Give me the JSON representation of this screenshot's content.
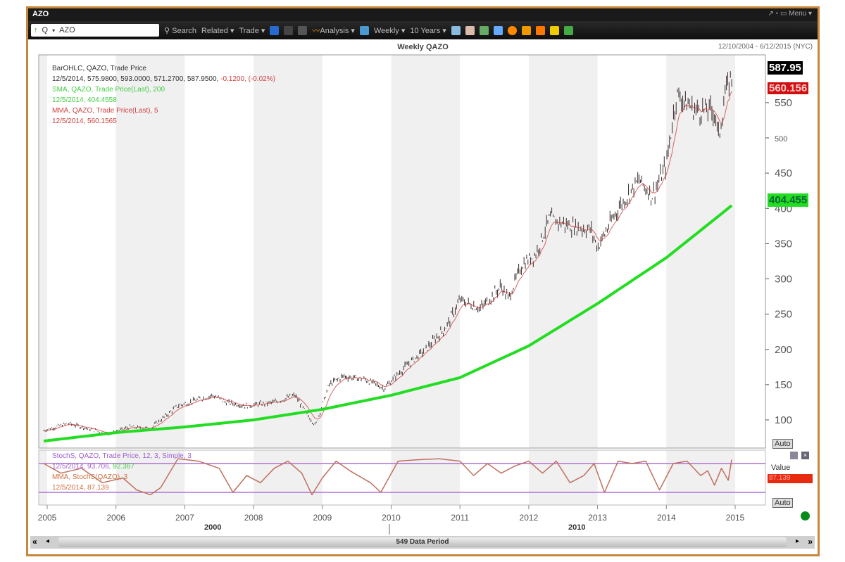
{
  "window": {
    "title": "AZO",
    "controls": "↗ ▫ ▭ Menu ▾"
  },
  "toolbar": {
    "q": "Q",
    "symbol": "AZO",
    "search": "Search",
    "related": "Related ▾",
    "trade": "Trade ▾",
    "analysis": "Analysis ▾",
    "weekly": "Weekly ▾",
    "years": "10 Years ▾"
  },
  "chart_title": "Weekly QAZO",
  "date_range": "12/10/2004 - 6/12/2015 (NYC)",
  "legend": {
    "bar_title": "BarOHLC, QAZO, Trade Price",
    "bar_values": "12/5/2014, 575.9800, 593.0000, 571.2700, 587.9500,",
    "bar_change": "-0.1200, (-0.02%)",
    "sma_title": "SMA, QAZO, Trade Price(Last), 200",
    "sma_value": "12/5/2014, 404.4558",
    "mma_title": "MMA, QAZO, Trade Price(Last), 5",
    "mma_value": "12/5/2014, 560.1565",
    "stoch_title": "StochS, QAZO, Trade Price, 12, 3, Simple, 3",
    "stoch_values": "12/5/2014, 93.706,",
    "stoch_values2": "92.367",
    "smma_title": "MMA, StochS(QAZO), 3",
    "smma_value": "12/5/2014, 87.139"
  },
  "tags": {
    "last": "587.95",
    "mma": "560.156",
    "sma": "404.455",
    "value_label": "Value",
    "stoch": "87.139"
  },
  "buttons": {
    "auto": "Auto",
    "auto2": "Auto",
    "first": "«",
    "prev": "◂",
    "next": "▸",
    "last": "»"
  },
  "scroll_label": "549 Data Period",
  "decades": [
    "2000",
    "2010"
  ],
  "colors": {
    "price": "#3a2a2a",
    "sma": "#22dd22",
    "mma": "#d04040",
    "stoch": "#c07060",
    "band": "#b070d0"
  },
  "chart_data": {
    "type": "line",
    "title": "Weekly QAZO",
    "xlabel": "",
    "ylabel": "",
    "xlim": [
      2004.9,
      2015.4
    ],
    "ylim": [
      80,
      600
    ],
    "x_ticks": [
      "2005",
      "2006",
      "2007",
      "2008",
      "2009",
      "2010",
      "2011",
      "2012",
      "2013",
      "2014",
      "2015"
    ],
    "y_ticks": [
      "100",
      "150",
      "200",
      "250",
      "300",
      "350",
      "400",
      "450",
      "500",
      "550"
    ],
    "series": [
      {
        "name": "BarOHLC QAZO",
        "points": [
          [
            2004.95,
            85
          ],
          [
            2005.3,
            95
          ],
          [
            2005.5,
            90
          ],
          [
            2005.9,
            80
          ],
          [
            2006.2,
            90
          ],
          [
            2006.5,
            88
          ],
          [
            2006.9,
            120
          ],
          [
            2007.4,
            135
          ],
          [
            2007.6,
            125
          ],
          [
            2007.9,
            120
          ],
          [
            2008.3,
            125
          ],
          [
            2008.6,
            135
          ],
          [
            2008.8,
            105
          ],
          [
            2008.9,
            92
          ],
          [
            2009.1,
            150
          ],
          [
            2009.3,
            162
          ],
          [
            2009.6,
            158
          ],
          [
            2009.9,
            145
          ],
          [
            2010.2,
            175
          ],
          [
            2010.5,
            200
          ],
          [
            2010.8,
            232
          ],
          [
            2011.0,
            270
          ],
          [
            2011.3,
            258
          ],
          [
            2011.6,
            290
          ],
          [
            2011.7,
            272
          ],
          [
            2011.9,
            320
          ],
          [
            2012.1,
            335
          ],
          [
            2012.3,
            385
          ],
          [
            2012.6,
            375
          ],
          [
            2012.9,
            370
          ],
          [
            2013.0,
            345
          ],
          [
            2013.3,
            400
          ],
          [
            2013.6,
            440
          ],
          [
            2013.8,
            418
          ],
          [
            2014.0,
            462
          ],
          [
            2014.1,
            530
          ],
          [
            2014.15,
            562
          ],
          [
            2014.4,
            540
          ],
          [
            2014.7,
            538
          ],
          [
            2014.76,
            500
          ],
          [
            2014.85,
            560
          ],
          [
            2014.95,
            588
          ]
        ]
      },
      {
        "name": "SMA 200",
        "points": [
          [
            2004.95,
            70
          ],
          [
            2006,
            82
          ],
          [
            2007,
            90
          ],
          [
            2008,
            100
          ],
          [
            2009,
            115
          ],
          [
            2010,
            135
          ],
          [
            2011,
            160
          ],
          [
            2012,
            205
          ],
          [
            2013,
            265
          ],
          [
            2014,
            330
          ],
          [
            2014.95,
            404
          ]
        ]
      },
      {
        "name": "StochS",
        "ylim": [
          0,
          100
        ],
        "bands": [
          80,
          20
        ],
        "points": [
          [
            2004.95,
            80
          ],
          [
            2005.2,
            60
          ],
          [
            2005.5,
            70
          ],
          [
            2005.8,
            40
          ],
          [
            2006.1,
            50
          ],
          [
            2006.3,
            25
          ],
          [
            2006.5,
            15
          ],
          [
            2006.65,
            30
          ],
          [
            2006.9,
            90
          ],
          [
            2007.2,
            85
          ],
          [
            2007.5,
            70
          ],
          [
            2007.7,
            20
          ],
          [
            2007.9,
            55
          ],
          [
            2008.1,
            40
          ],
          [
            2008.3,
            70
          ],
          [
            2008.5,
            85
          ],
          [
            2008.7,
            60
          ],
          [
            2008.85,
            15
          ],
          [
            2009.0,
            50
          ],
          [
            2009.2,
            85
          ],
          [
            2009.4,
            65
          ],
          [
            2009.7,
            40
          ],
          [
            2009.85,
            20
          ],
          [
            2010.1,
            85
          ],
          [
            2010.4,
            88
          ],
          [
            2010.7,
            90
          ],
          [
            2011.0,
            85
          ],
          [
            2011.2,
            55
          ],
          [
            2011.4,
            80
          ],
          [
            2011.6,
            60
          ],
          [
            2011.8,
            75
          ],
          [
            2012.0,
            85
          ],
          [
            2012.2,
            60
          ],
          [
            2012.4,
            85
          ],
          [
            2012.6,
            40
          ],
          [
            2012.8,
            55
          ],
          [
            2012.95,
            80
          ],
          [
            2013.1,
            20
          ],
          [
            2013.3,
            85
          ],
          [
            2013.5,
            80
          ],
          [
            2013.7,
            85
          ],
          [
            2013.9,
            25
          ],
          [
            2014.1,
            80
          ],
          [
            2014.3,
            85
          ],
          [
            2014.5,
            55
          ],
          [
            2014.6,
            65
          ],
          [
            2014.7,
            35
          ],
          [
            2014.8,
            70
          ],
          [
            2014.9,
            45
          ],
          [
            2014.95,
            88
          ]
        ]
      }
    ]
  }
}
